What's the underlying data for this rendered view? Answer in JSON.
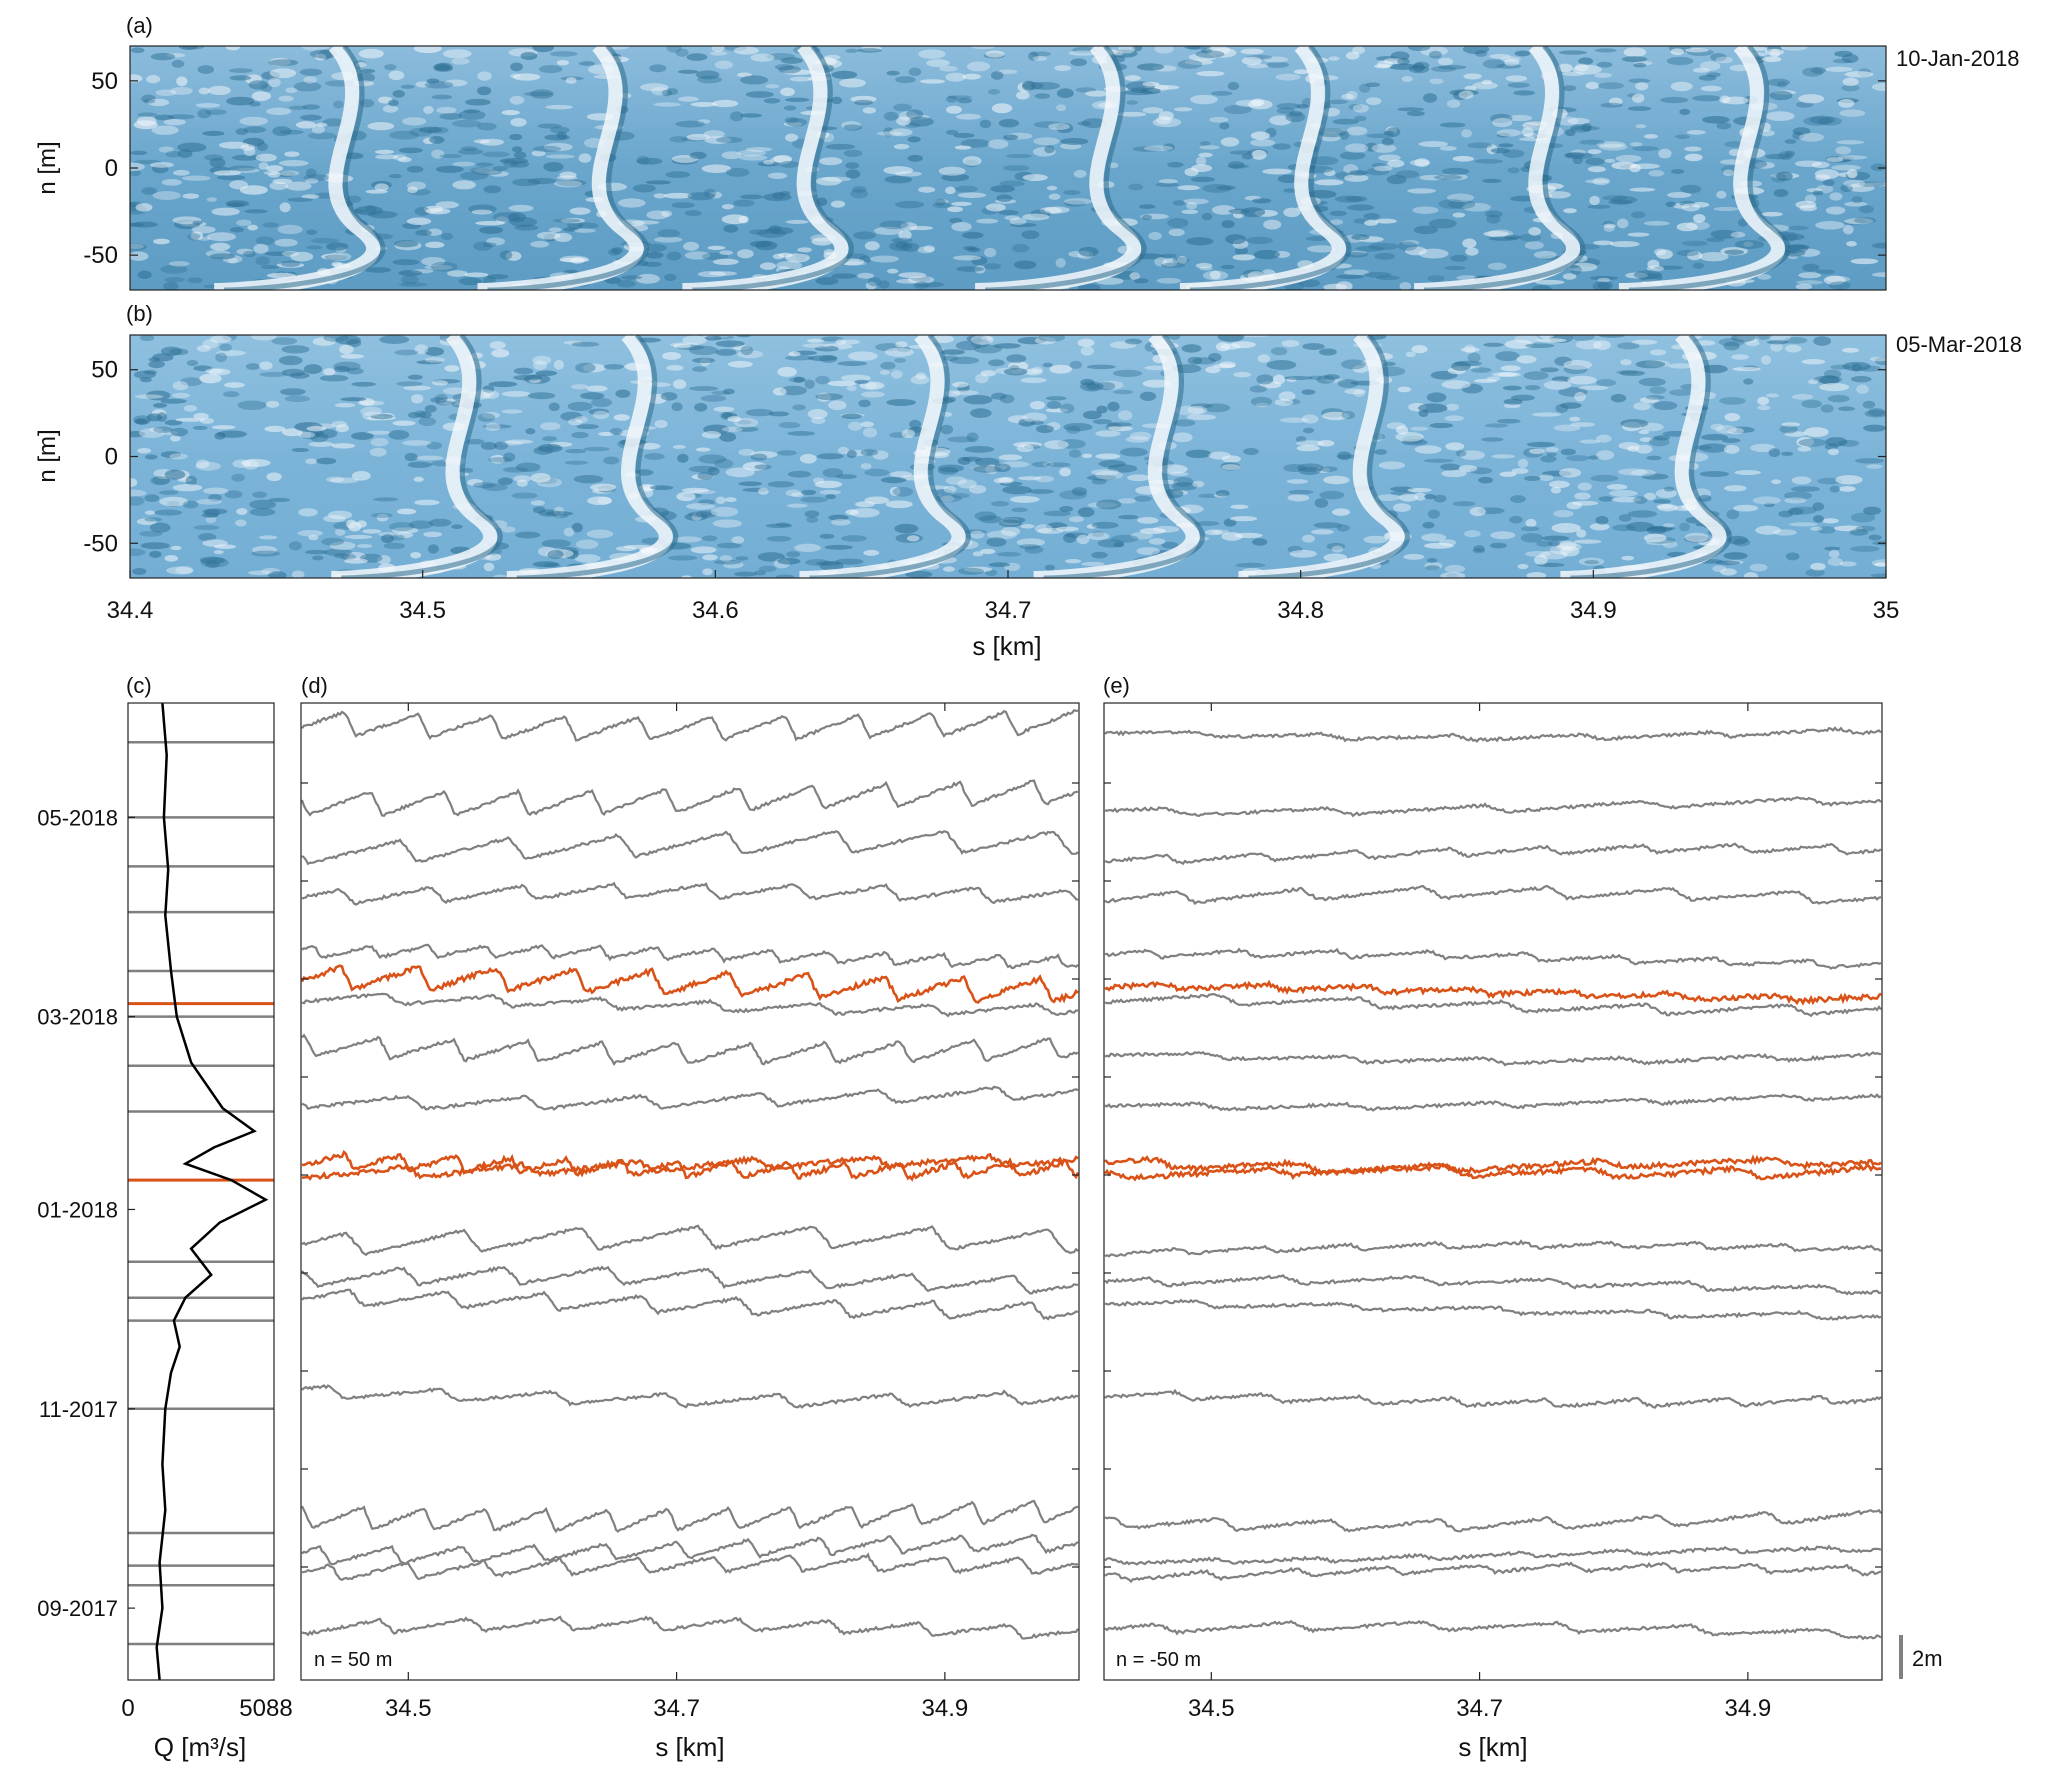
{
  "chart_data": [
    {
      "panel": "(a)",
      "type": "heatmap",
      "date": "10-Jan-2018",
      "xlabel": "",
      "ylabel": "n [m]",
      "yticks": [
        50,
        0,
        -50
      ],
      "xlim": [
        34.4,
        35.0
      ],
      "ylim": [
        -70,
        70
      ],
      "dunes_x_km": [
        34.48,
        34.57,
        34.64,
        34.74,
        34.81,
        34.89,
        34.96
      ]
    },
    {
      "panel": "(b)",
      "type": "heatmap",
      "date": "05-Mar-2018",
      "xlabel": "s [km]",
      "ylabel": "n [m]",
      "yticks": [
        50,
        0,
        -50
      ],
      "xticks": [
        "34.4",
        "34.5",
        "34.6",
        "34.7",
        "34.8",
        "34.9",
        "35"
      ],
      "xlim": [
        34.4,
        35.0
      ],
      "ylim": [
        -70,
        70
      ],
      "dunes_x_km": [
        34.52,
        34.58,
        34.68,
        34.76,
        34.83,
        34.94
      ]
    },
    {
      "panel": "(c)",
      "type": "line",
      "xlabel": "Q [m³/s]",
      "xticks": [
        "0",
        "5088"
      ],
      "xlim": [
        0,
        5088
      ],
      "date_ticks": [
        "05-2018",
        "03-2018",
        "01-2018",
        "11-2017",
        "09-2017"
      ],
      "date_range": [
        "2017-08-10",
        "2018-06-05"
      ],
      "discharge": [
        {
          "t": "2018-06-05",
          "q": 1200
        },
        {
          "t": "2018-05-20",
          "q": 1350
        },
        {
          "t": "2018-05-01",
          "q": 1250
        },
        {
          "t": "2018-04-15",
          "q": 1400
        },
        {
          "t": "2018-04-01",
          "q": 1300
        },
        {
          "t": "2018-03-15",
          "q": 1500
        },
        {
          "t": "2018-03-01",
          "q": 1700
        },
        {
          "t": "2018-02-15",
          "q": 2200
        },
        {
          "t": "2018-02-01",
          "q": 3300
        },
        {
          "t": "2018-01-25",
          "q": 4400
        },
        {
          "t": "2018-01-20",
          "q": 3000
        },
        {
          "t": "2018-01-15",
          "q": 2000
        },
        {
          "t": "2018-01-10",
          "q": 3600
        },
        {
          "t": "2018-01-04",
          "q": 4800
        },
        {
          "t": "2017-12-28",
          "q": 3200
        },
        {
          "t": "2017-12-20",
          "q": 2200
        },
        {
          "t": "2017-12-12",
          "q": 2900
        },
        {
          "t": "2017-12-05",
          "q": 2000
        },
        {
          "t": "2017-11-28",
          "q": 1600
        },
        {
          "t": "2017-11-20",
          "q": 1800
        },
        {
          "t": "2017-11-12",
          "q": 1500
        },
        {
          "t": "2017-11-01",
          "q": 1300
        },
        {
          "t": "2017-10-15",
          "q": 1200
        },
        {
          "t": "2017-10-01",
          "q": 1300
        },
        {
          "t": "2017-09-15",
          "q": 1100
        },
        {
          "t": "2017-09-01",
          "q": 1200
        },
        {
          "t": "2017-08-20",
          "q": 1000
        },
        {
          "t": "2017-08-10",
          "q": 1100
        }
      ],
      "survey_dates": [
        "2018-05-24",
        "2018-05-01",
        "2018-04-16",
        "2018-04-02",
        "2018-03-15",
        "2018-03-01",
        "2018-02-14",
        "2018-01-31",
        "2018-01-10",
        "2017-12-16",
        "2017-12-05",
        "2017-11-28",
        "2017-11-01",
        "2017-09-24",
        "2017-09-14",
        "2017-09-08",
        "2017-08-21"
      ],
      "highlighted_dates": [
        "2018-03-05",
        "2018-01-10"
      ],
      "colors": {
        "line": "#000000",
        "survey": "#7f7f7f",
        "highlight": "#d95319"
      }
    },
    {
      "panel": "(d)",
      "type": "line",
      "annotation": "n = 50 m",
      "xlabel": "s [km]",
      "xticks": [
        "34.5",
        "34.7",
        "34.9"
      ],
      "xlim": [
        34.42,
        35.0
      ],
      "highlighted_dates": [
        "2018-03-05",
        "2018-01-10"
      ]
    },
    {
      "panel": "(e)",
      "type": "line",
      "annotation": "n = -50 m",
      "xlabel": "s [km]",
      "xticks": [
        "34.5",
        "34.7",
        "34.9"
      ],
      "xlim": [
        34.42,
        35.0
      ],
      "scale_bar": "2m",
      "highlighted_dates": [
        "2018-03-05",
        "2018-01-10"
      ]
    }
  ],
  "colors": {
    "highlight": "#d95319",
    "gray": "#808080",
    "dune_base": "#6fa8cf",
    "dune_light": "#e8f0f6",
    "dune_dark": "#2e6e8e"
  }
}
